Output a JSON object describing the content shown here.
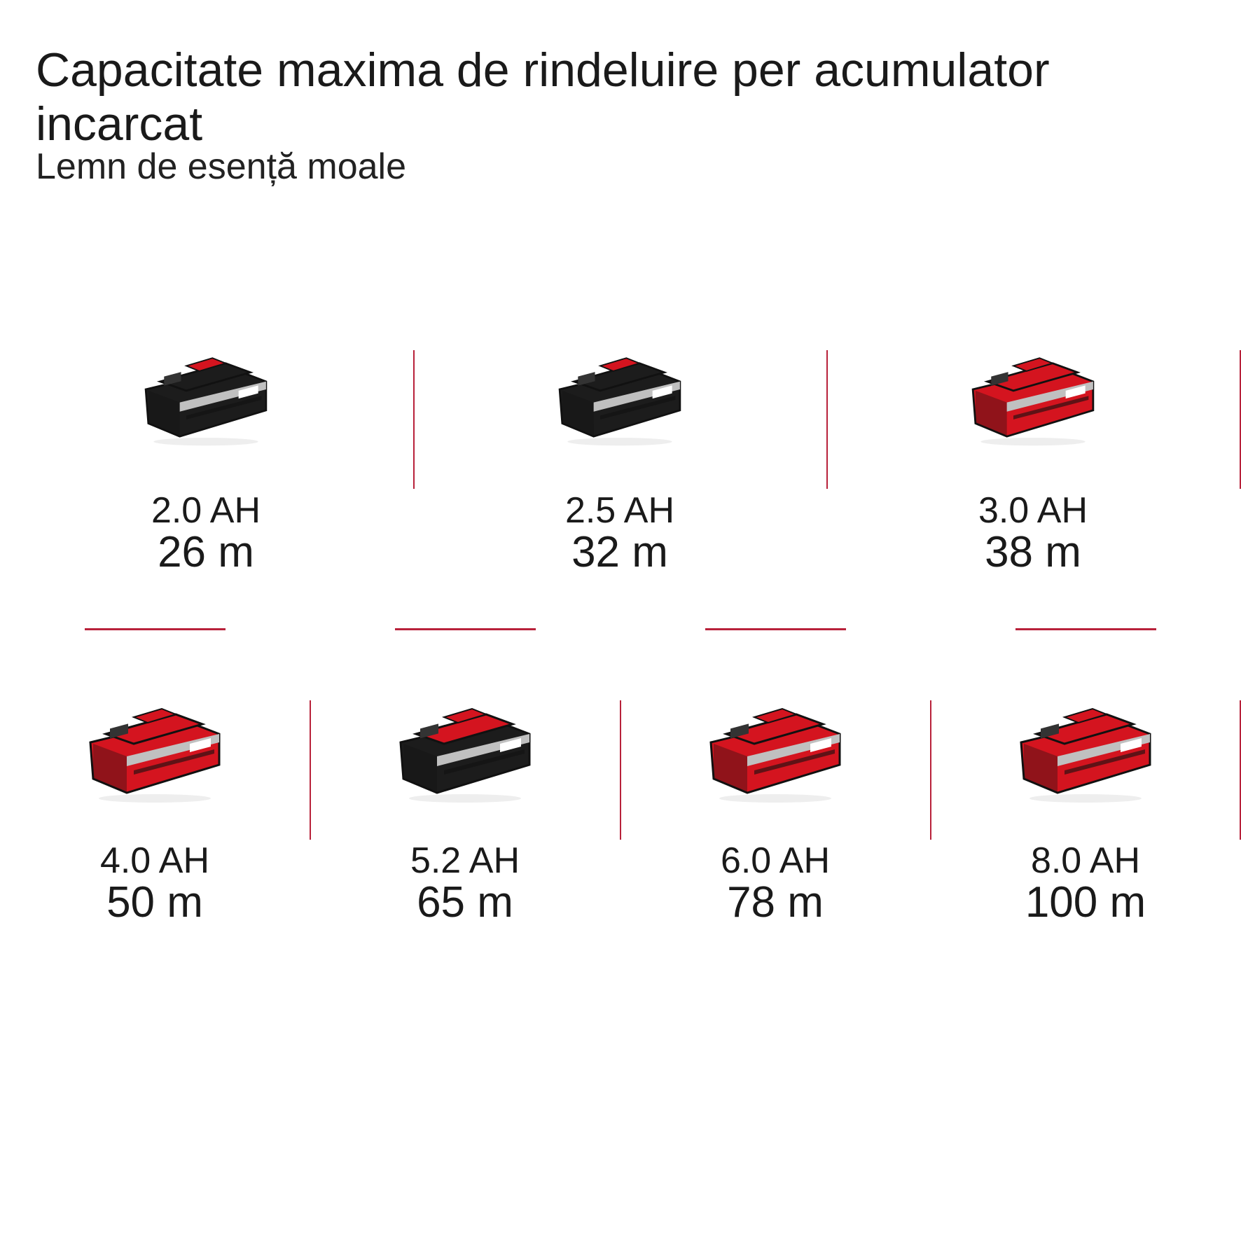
{
  "header": {
    "title": "Capacitate maxima de rindeluire per acumulator incarcat",
    "subtitle": "Lemn de esență moale"
  },
  "accent_color": "#b8213a",
  "batteries": [
    {
      "capacity": "2.0 AH",
      "length": "26 m",
      "icon": "battery-pack-icon",
      "body_color": "#1c1c1c",
      "top_color": "#1c1c1c"
    },
    {
      "capacity": "2.5 AH",
      "length": "32 m",
      "icon": "battery-pack-icon",
      "body_color": "#1c1c1c",
      "top_color": "#1c1c1c"
    },
    {
      "capacity": "3.0 AH",
      "length": "38 m",
      "icon": "battery-pack-icon",
      "body_color": "#d4141f",
      "top_color": "#d4141f"
    },
    {
      "capacity": "4.0 AH",
      "length": "50 m",
      "icon": "battery-pack-icon",
      "body_color": "#d4141f",
      "top_color": "#d4141f"
    },
    {
      "capacity": "5.2 AH",
      "length": "65 m",
      "icon": "battery-pack-icon",
      "body_color": "#1c1c1c",
      "top_color": "#d4141f"
    },
    {
      "capacity": "6.0 AH",
      "length": "78 m",
      "icon": "battery-pack-icon",
      "body_color": "#d4141f",
      "top_color": "#d4141f"
    },
    {
      "capacity": "8.0 AH",
      "length": "100 m",
      "icon": "battery-pack-icon",
      "body_color": "#d4141f",
      "top_color": "#d4141f"
    }
  ]
}
